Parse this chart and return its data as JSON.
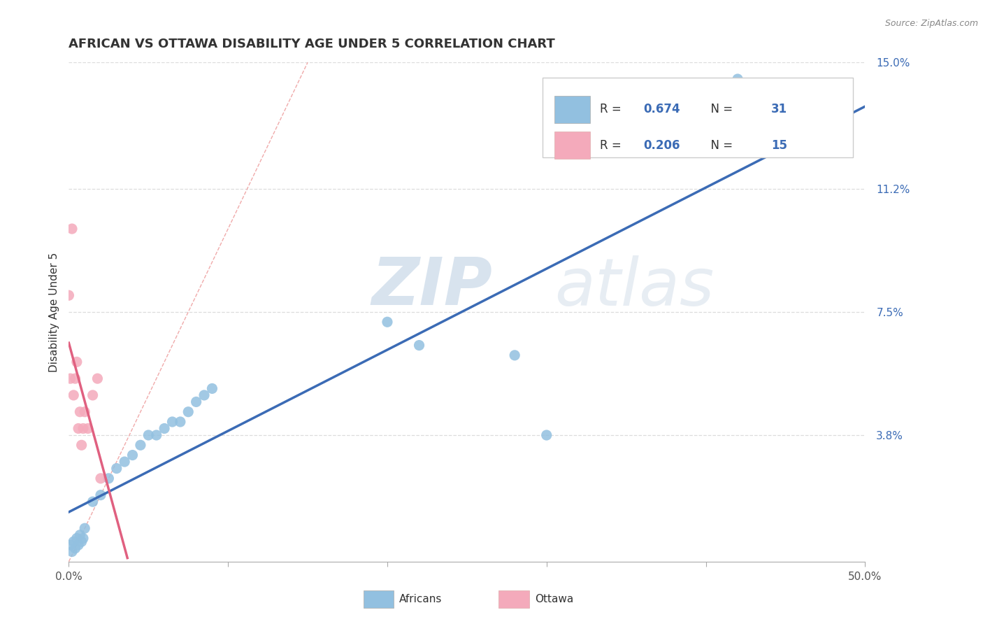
{
  "title": "AFRICAN VS OTTAWA DISABILITY AGE UNDER 5 CORRELATION CHART",
  "source": "Source: ZipAtlas.com",
  "ylabel": "Disability Age Under 5",
  "xlim": [
    0.0,
    0.5
  ],
  "ylim": [
    0.0,
    0.15
  ],
  "xtick_values": [
    0.0,
    0.5
  ],
  "xtick_labels": [
    "0.0%",
    "50.0%"
  ],
  "ytick_labels": [
    "3.8%",
    "7.5%",
    "11.2%",
    "15.0%"
  ],
  "ytick_values": [
    0.038,
    0.075,
    0.112,
    0.15
  ],
  "gridline_color": "#dddddd",
  "background_color": "#ffffff",
  "watermark_zip": "ZIP",
  "watermark_atlas": "atlas",
  "legend_R1": "0.674",
  "legend_N1": "31",
  "legend_R2": "0.206",
  "legend_N2": "15",
  "blue_color": "#92C0E0",
  "pink_color": "#F4AABB",
  "trend_blue_color": "#3B6BB5",
  "trend_pink_color": "#E06080",
  "diag_color": "#F0AAAA",
  "title_fontsize": 13,
  "axis_label_fontsize": 11,
  "tick_fontsize": 11,
  "africans_x": [
    0.001,
    0.002,
    0.003,
    0.004,
    0.005,
    0.006,
    0.007,
    0.008,
    0.009,
    0.01,
    0.015,
    0.02,
    0.025,
    0.03,
    0.035,
    0.04,
    0.045,
    0.05,
    0.055,
    0.06,
    0.065,
    0.07,
    0.075,
    0.08,
    0.085,
    0.09,
    0.2,
    0.22,
    0.28,
    0.3,
    0.42
  ],
  "africans_y": [
    0.005,
    0.003,
    0.006,
    0.004,
    0.007,
    0.005,
    0.008,
    0.006,
    0.007,
    0.01,
    0.018,
    0.02,
    0.025,
    0.028,
    0.03,
    0.032,
    0.035,
    0.038,
    0.038,
    0.04,
    0.042,
    0.042,
    0.045,
    0.048,
    0.05,
    0.052,
    0.072,
    0.065,
    0.062,
    0.038,
    0.145
  ],
  "ottawa_x": [
    0.0,
    0.001,
    0.002,
    0.003,
    0.004,
    0.005,
    0.006,
    0.007,
    0.008,
    0.009,
    0.01,
    0.012,
    0.015,
    0.018,
    0.02
  ],
  "ottawa_y": [
    0.08,
    0.055,
    0.1,
    0.05,
    0.055,
    0.06,
    0.04,
    0.045,
    0.035,
    0.04,
    0.045,
    0.04,
    0.05,
    0.055,
    0.025
  ]
}
